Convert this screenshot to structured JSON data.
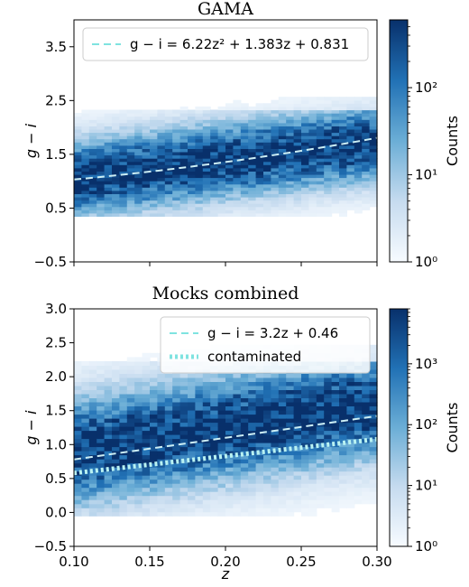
{
  "chart_data": [
    {
      "type": "heatmap",
      "title": "GAMA",
      "xlabel": "",
      "ylabel": "g − i",
      "xlim": [
        0.1,
        0.3
      ],
      "ylim": [
        -0.5,
        4.0
      ],
      "xticks": [
        "0.10",
        "0.15",
        "0.20",
        "0.25",
        "0.30"
      ],
      "show_xticklabels": false,
      "yticks": [
        -0.5,
        0.5,
        1.5,
        2.5,
        3.5
      ],
      "ytick_labels": [
        "−0.5",
        "0.5",
        "1.5",
        "2.5",
        "3.5"
      ],
      "colorbar": {
        "label": "Counts",
        "scale": "log",
        "range": [
          1,
          600
        ],
        "tick_labels": [
          "10⁰",
          "10¹",
          "10²"
        ]
      },
      "density": {
        "center": {
          "z0": 1.05,
          "slope": 3.4
        },
        "width": 0.38,
        "ymin": 0.35,
        "ymax": 2.3,
        "peak": 600
      },
      "legend": {
        "placement": "upper-left",
        "entries": [
          {
            "label": "g − i = 6.22z² + 1.383z + 0.831",
            "style": "dashed",
            "color": "#7fe3e0"
          }
        ]
      },
      "fit_lines": [
        {
          "type": "quadratic",
          "a": 6.22,
          "b": 1.383,
          "c": 0.831,
          "style": "dashed",
          "color": "#cdeff5"
        }
      ]
    },
    {
      "type": "heatmap",
      "title": "Mocks combined",
      "xlabel": "z",
      "ylabel": "g − i",
      "xlim": [
        0.1,
        0.3
      ],
      "ylim": [
        -0.5,
        3.0
      ],
      "xticks": [
        "0.10",
        "0.15",
        "0.20",
        "0.25",
        "0.30"
      ],
      "show_xticklabels": true,
      "yticks": [
        -0.5,
        0.0,
        0.5,
        1.0,
        1.5,
        2.0,
        2.5,
        3.0
      ],
      "ytick_labels": [
        "−0.5",
        "0.0",
        "0.5",
        "1.0",
        "1.5",
        "2.0",
        "2.5",
        "3.0"
      ],
      "colorbar": {
        "label": "Counts",
        "scale": "log",
        "range": [
          1,
          8000
        ],
        "tick_labels": [
          "10⁰",
          "10¹",
          "10²",
          "10³"
        ]
      },
      "density": {
        "center": {
          "z0": 0.9,
          "slope": 3.5
        },
        "width": 0.42,
        "ymin": -0.05,
        "ymax": 2.2,
        "peak": 8000
      },
      "legend": {
        "placement": "upper-right",
        "entries": [
          {
            "label": "g − i = 3.2z + 0.46",
            "style": "dashed",
            "color": "#7fe3e0"
          },
          {
            "label": "contaminated",
            "style": "dotted",
            "color": "#7fe3e0"
          }
        ]
      },
      "fit_lines": [
        {
          "type": "linear",
          "a": 3.2,
          "b": 0.46,
          "style": "dashed",
          "color": "#cdeff5"
        },
        {
          "type": "linear",
          "a": 2.5,
          "b": 0.33,
          "style": "dotted",
          "color": "#b9f2f2"
        }
      ]
    }
  ]
}
